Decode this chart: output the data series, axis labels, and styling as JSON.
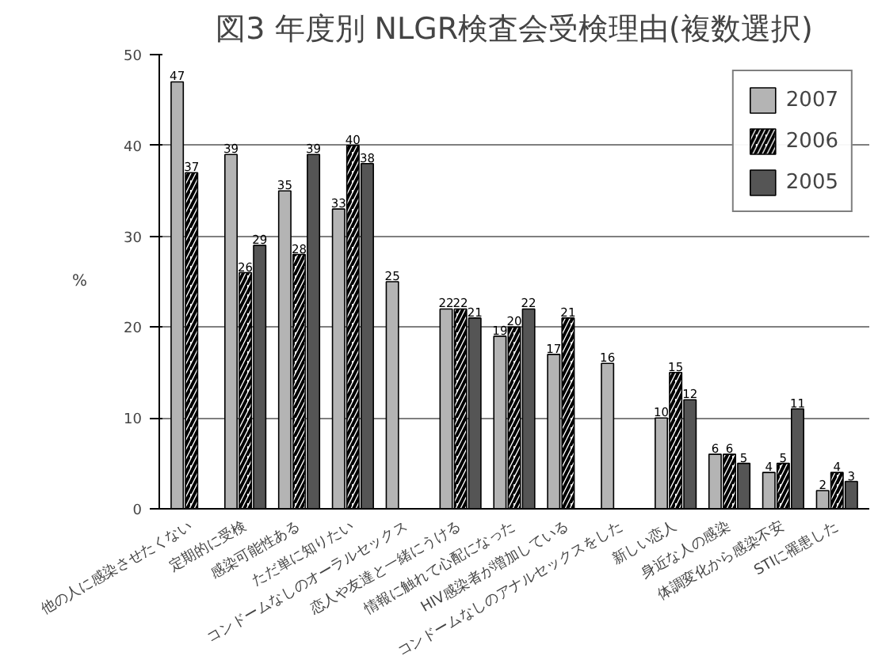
{
  "chart_data": {
    "type": "bar",
    "title": "図3 年度別 NLGR検査会受検理由(複数選択)",
    "ylabel": "%",
    "categories": [
      "他の人に感染させたくない",
      "定期的に受検",
      "感染可能性ある",
      "ただ単に知りたい",
      "コンドームなしのオーラルセックス",
      "恋人や友達と一緒にうける",
      "情報に触れて心配になった",
      "HIV感染者が増加している",
      "コンドームなしのアナルセックスをした",
      "新しい恋人",
      "身近な人の感染",
      "体調変化から感染不安",
      "STIに罹患した"
    ],
    "series": [
      {
        "name": "2007",
        "color": "#b4b4b4",
        "values": [
          47,
          39,
          35,
          33,
          25,
          22,
          19,
          17,
          16,
          10,
          6,
          4,
          2
        ]
      },
      {
        "name": "2006",
        "color": "#ffffff",
        "values": [
          37,
          26,
          28,
          40,
          null,
          22,
          20,
          21,
          null,
          15,
          6,
          5,
          4
        ]
      },
      {
        "name": "2005",
        "color": "#555555",
        "values": [
          null,
          29,
          39,
          38,
          null,
          21,
          22,
          null,
          null,
          12,
          5,
          11,
          3
        ]
      }
    ],
    "ylim": [
      0,
      50
    ],
    "yticks": [
      0,
      10,
      20,
      30,
      40,
      50
    ],
    "grid": "y",
    "legend": "top right",
    "data_labels": true
  }
}
